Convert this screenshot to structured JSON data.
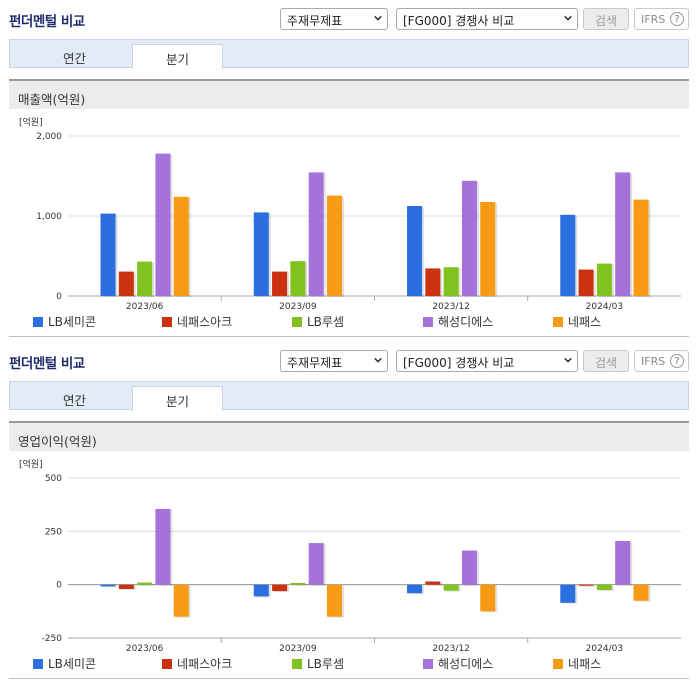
{
  "colors": {
    "series": [
      "#2a6ee0",
      "#cc3210",
      "#82c21e",
      "#a472d8",
      "#f79a14"
    ],
    "grid": "#dcdcdc",
    "title": "#1f2c6b"
  },
  "icons": {
    "dropdown": "chevron-down-icon",
    "help": "question-circle-icon"
  },
  "panels": [
    {
      "title": "펀더멘털 비교",
      "select_type": "주재무제표",
      "select_compare": "[FG000] 경쟁사 비교",
      "search_label": "검색",
      "ifrs_label": "IFRS",
      "help_glyph": "?",
      "tabs": [
        {
          "label": "연간",
          "active": false
        },
        {
          "label": "분기",
          "active": true
        }
      ],
      "section_title": "매출액(억원)",
      "unit": "[억원]"
    },
    {
      "title": "펀더멘털 비교",
      "select_type": "주재무제표",
      "select_compare": "[FG000] 경쟁사 비교",
      "search_label": "검색",
      "ifrs_label": "IFRS",
      "help_glyph": "?",
      "tabs": [
        {
          "label": "연간",
          "active": false
        },
        {
          "label": "분기",
          "active": true
        }
      ],
      "section_title": "영업이익(억원)",
      "unit": "[억원]"
    }
  ],
  "chart_data": [
    {
      "type": "bar",
      "title": "매출액(억원)",
      "ylabel": "[억원]",
      "categories": [
        "2023/06",
        "2023/09",
        "2023/12",
        "2024/03"
      ],
      "ylim": [
        0,
        2000
      ],
      "yticks": [
        "0",
        "1,000",
        "2,000"
      ],
      "ytick_values": [
        0,
        1000,
        2000
      ],
      "grid": true,
      "legend_position": "bottom",
      "series": [
        {
          "name": "LB세미콘",
          "values": [
            1030,
            1045,
            1125,
            1015
          ]
        },
        {
          "name": "네패스아크",
          "values": [
            305,
            305,
            345,
            330
          ]
        },
        {
          "name": "LB루셈",
          "values": [
            430,
            435,
            360,
            405
          ]
        },
        {
          "name": "해성디에스",
          "values": [
            1780,
            1545,
            1440,
            1545
          ]
        },
        {
          "name": "네패스",
          "values": [
            1240,
            1255,
            1175,
            1205
          ]
        }
      ]
    },
    {
      "type": "bar",
      "title": "영업이익(억원)",
      "ylabel": "[억원]",
      "categories": [
        "2023/06",
        "2023/09",
        "2023/12",
        "2024/03"
      ],
      "ylim": [
        -250,
        500
      ],
      "yticks": [
        "-250",
        "0",
        "250",
        "500"
      ],
      "ytick_values": [
        -250,
        0,
        250,
        500
      ],
      "grid": true,
      "legend_position": "bottom",
      "series": [
        {
          "name": "LB세미콘",
          "values": [
            -8,
            -55,
            -40,
            -85
          ]
        },
        {
          "name": "네패스아크",
          "values": [
            -20,
            -30,
            15,
            -5
          ]
        },
        {
          "name": "LB루셈",
          "values": [
            10,
            8,
            -28,
            -25
          ]
        },
        {
          "name": "해성디에스",
          "values": [
            355,
            195,
            160,
            205
          ]
        },
        {
          "name": "네패스",
          "values": [
            -150,
            -150,
            -125,
            -75
          ]
        }
      ]
    }
  ]
}
